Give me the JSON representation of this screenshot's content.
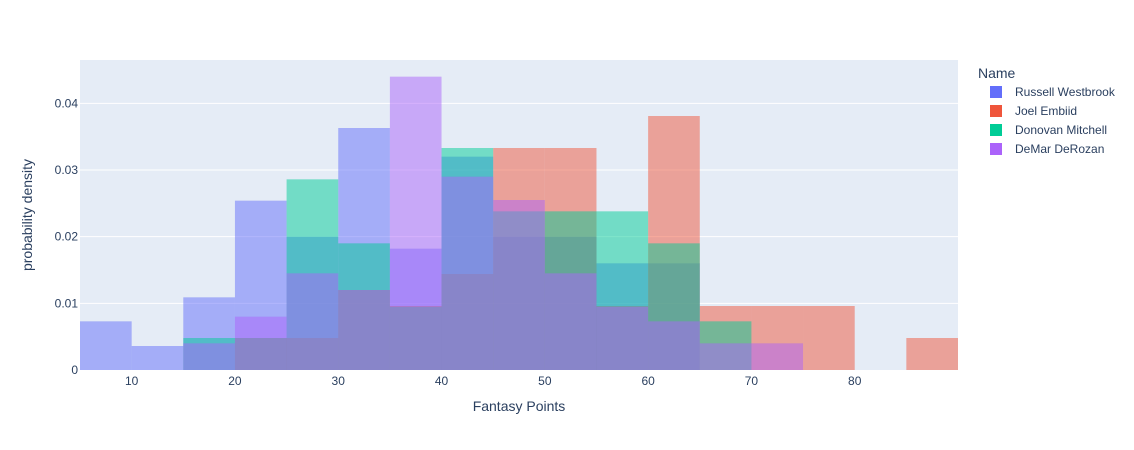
{
  "chart_data": {
    "type": "histogram",
    "xlabel": "Fantasy Points",
    "ylabel": "probability density",
    "xlim": [
      5,
      90
    ],
    "ylim": [
      0,
      0.0465
    ],
    "x_ticks": [
      10,
      20,
      30,
      40,
      50,
      60,
      70,
      80
    ],
    "y_ticks": [
      0,
      0.01,
      0.02,
      0.03,
      0.04
    ],
    "y_tick_labels": [
      "0",
      "0.01",
      "0.02",
      "0.03",
      "0.04"
    ],
    "bin_width": 5,
    "grid": true,
    "legend_title": "Name",
    "legend_position": "right",
    "series": [
      {
        "name": "Russell Westbrook",
        "color": "#636efa",
        "bins": [
          [
            5,
            10,
            0.0073
          ],
          [
            10,
            15,
            0.0036
          ],
          [
            15,
            20,
            0.0109
          ],
          [
            20,
            25,
            0.0254
          ],
          [
            25,
            30,
            0.02
          ],
          [
            30,
            35,
            0.0363
          ],
          [
            35,
            40,
            0.0182
          ],
          [
            40,
            45,
            0.032
          ],
          [
            45,
            50,
            0.02
          ],
          [
            50,
            55,
            0.02
          ],
          [
            55,
            60,
            0.016
          ],
          [
            60,
            65,
            0.016
          ]
        ]
      },
      {
        "name": "Joel Embiid",
        "color": "#ef553b",
        "bins": [
          [
            20,
            25,
            0.0048
          ],
          [
            25,
            30,
            0.0048
          ],
          [
            30,
            35,
            0.012
          ],
          [
            35,
            40,
            0.0096
          ],
          [
            40,
            45,
            0.0144
          ],
          [
            45,
            50,
            0.0333
          ],
          [
            50,
            55,
            0.0333
          ],
          [
            55,
            60,
            0.0096
          ],
          [
            60,
            65,
            0.0381
          ],
          [
            65,
            70,
            0.0096
          ],
          [
            70,
            75,
            0.0096
          ],
          [
            75,
            80,
            0.0096
          ],
          [
            85,
            90,
            0.0048
          ]
        ]
      },
      {
        "name": "Donovan Mitchell",
        "color": "#00cc96",
        "bins": [
          [
            15,
            20,
            0.0048
          ],
          [
            20,
            25,
            0.0048
          ],
          [
            25,
            30,
            0.0286
          ],
          [
            30,
            35,
            0.019
          ],
          [
            35,
            40,
            0.0095
          ],
          [
            40,
            45,
            0.0333
          ],
          [
            45,
            50,
            0.0238
          ],
          [
            50,
            55,
            0.0238
          ],
          [
            55,
            60,
            0.0238
          ],
          [
            60,
            65,
            0.019
          ],
          [
            65,
            70,
            0.0073
          ]
        ]
      },
      {
        "name": "DeMar DeRozan",
        "color": "#ab63fa",
        "bins": [
          [
            15,
            20,
            0.004
          ],
          [
            20,
            25,
            0.008
          ],
          [
            25,
            30,
            0.0145
          ],
          [
            30,
            35,
            0.012
          ],
          [
            35,
            40,
            0.044
          ],
          [
            40,
            45,
            0.029
          ],
          [
            45,
            50,
            0.0255
          ],
          [
            50,
            55,
            0.0145
          ],
          [
            55,
            60,
            0.0095
          ],
          [
            60,
            65,
            0.0073
          ],
          [
            65,
            70,
            0.004
          ],
          [
            70,
            75,
            0.004
          ]
        ]
      }
    ]
  }
}
